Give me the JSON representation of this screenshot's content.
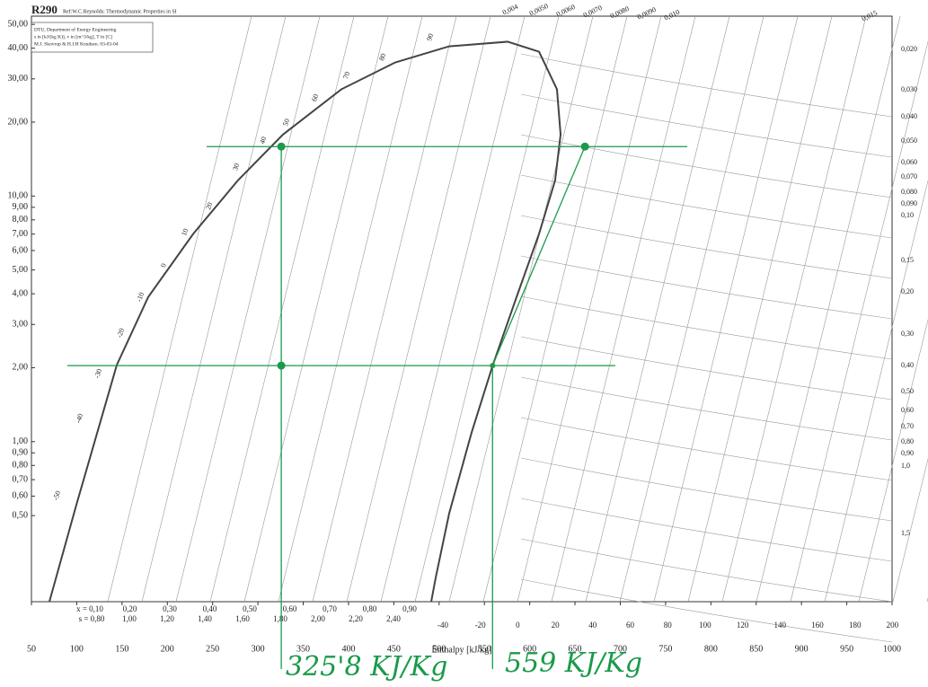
{
  "chart_data": {
    "type": "ph",
    "title": "R290",
    "subtitle": "Ref:W.C.Reynolds: Thermodynamic Properties in SI",
    "info": [
      "DTU, Department of Energy Engineering",
      "s in [kJ/(kg K)], v in [m^3/kg], T in [C]",
      "M.J. Skovrup & H.J.H Knudsen. 03-03-04"
    ],
    "xlabel": "Enthalpy [kJ/kg]",
    "log_y": true,
    "xlim": [
      50,
      1000
    ],
    "xticks": [
      50,
      100,
      150,
      200,
      250,
      300,
      350,
      400,
      450,
      500,
      550,
      600,
      650,
      700,
      750,
      800,
      850,
      900,
      950,
      1000
    ],
    "ylim": [
      0.223,
      54
    ],
    "yticks": [
      {
        "value": 50,
        "label": "50,00"
      },
      {
        "value": 40,
        "label": "40,00"
      },
      {
        "value": 30,
        "label": "30,00"
      },
      {
        "value": 20,
        "label": "20,00"
      },
      {
        "value": 10,
        "label": "10,00"
      },
      {
        "value": 9,
        "label": "9,00"
      },
      {
        "value": 8,
        "label": "8,00"
      },
      {
        "value": 7,
        "label": "7,00"
      },
      {
        "value": 6,
        "label": "6,00"
      },
      {
        "value": 5,
        "label": "5,00"
      },
      {
        "value": 4,
        "label": "4,00"
      },
      {
        "value": 3,
        "label": "3,00"
      },
      {
        "value": 2,
        "label": "2,00"
      },
      {
        "value": 1,
        "label": "1,00"
      },
      {
        "value": 0.9,
        "label": "0,90"
      },
      {
        "value": 0.8,
        "label": "0,80"
      },
      {
        "value": 0.7,
        "label": "0,70"
      },
      {
        "value": 0.6,
        "label": "0,60"
      },
      {
        "value": 0.5,
        "label": "0,50"
      }
    ],
    "dome": {
      "color": "#444",
      "x": [
        69.8,
        99.6,
        144.2,
        178.9,
        228.5,
        278.1,
        327.7,
        392.1,
        451.6,
        511.1,
        575.6,
        610.3,
        630.1,
        634.1,
        628.1,
        610.3,
        585.5,
        558.7,
        535.9,
        511.1,
        496.3,
        491.3
      ],
      "y": [
        0.223,
        0.553,
        2.05,
        3.88,
        7.01,
        11.6,
        17.8,
        27.2,
        35.0,
        40.7,
        42.5,
        38.7,
        27.2,
        17.8,
        11.6,
        7.01,
        3.88,
        2.02,
        1.09,
        0.51,
        0.28,
        0.223
      ]
    },
    "isotherms": {
      "labels": [
        -50,
        -40,
        -30,
        -20,
        -10,
        0,
        10,
        20,
        30,
        40,
        50,
        60,
        70,
        80,
        90
      ],
      "x": [
        76.8,
        101.6,
        122.4,
        147.2,
        169,
        195.8,
        218.6,
        245.4,
        275.1,
        304.9,
        330.6,
        362.4,
        397.1,
        436.8,
        489.3
      ],
      "y": [
        0.577,
        1.19,
        1.81,
        2.65,
        3.71,
        5.13,
        6.89,
        8.81,
        12.7,
        16.3,
        19.3,
        24.3,
        30.0,
        35.6,
        42.9
      ]
    },
    "process": {
      "color": "#1a9a4a",
      "x": [
        325.8,
        325.8,
        559,
        661
      ],
      "y": [
        15.9,
        2.04,
        2.04,
        15.9
      ]
    },
    "quality_labels": [
      "x = 0,10",
      "0,20",
      "0,30",
      "0,40",
      "0,50",
      "0,60",
      "0,70",
      "0,80",
      "0,90"
    ],
    "entropy_labels": [
      "s = 0,80",
      "1,00",
      "1,20",
      "1,40",
      "1,60",
      "1,80",
      "2,00",
      "2,20",
      "2,40"
    ],
    "temperature_scale": [
      -40,
      -20,
      0,
      20,
      40,
      60,
      80,
      100,
      120,
      140,
      160,
      180,
      200
    ],
    "volume_labels": [
      "0,020",
      "0,030",
      "0,040",
      "0,050",
      "0,060",
      "0,070",
      "0,080",
      "0,090",
      "0,10",
      "0,15",
      "0,20",
      "0,30",
      "0,40",
      "0,50",
      "0,60",
      "0,70",
      "0,80",
      "0,90",
      "1,0",
      "1,5"
    ],
    "top_volume_labels": [
      "0,004",
      "0,0050",
      "0,0060",
      "0,0070",
      "0,0080",
      "0,0090",
      "0,010",
      "0,015"
    ],
    "annotations": [
      "325'8 KJ/Kg",
      "559 KJ/Kg"
    ]
  }
}
